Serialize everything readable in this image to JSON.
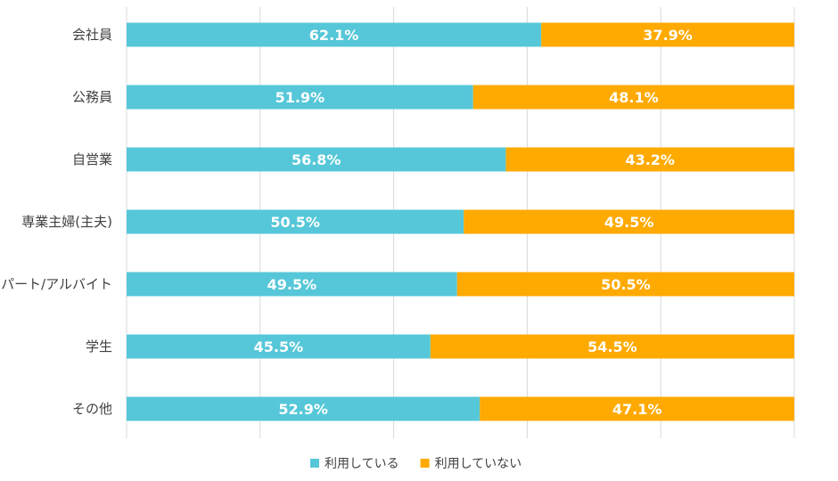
{
  "chart_data": {
    "type": "bar",
    "orientation": "horizontal",
    "stacked": "100%",
    "categories": [
      "会社員",
      "公務員",
      "自営業",
      "専業主婦(主夫)",
      "パート/アルバイト",
      "学生",
      "その他"
    ],
    "series": [
      {
        "name": "利用している",
        "color": "#56c7d8",
        "values": [
          62.1,
          51.9,
          56.8,
          50.5,
          49.5,
          45.5,
          52.9
        ],
        "labels": [
          "62.1%",
          "51.9%",
          "56.8%",
          "50.5%",
          "49.5%",
          "45.5%",
          "52.9%"
        ]
      },
      {
        "name": "利用していない",
        "color": "#ffaa00",
        "values": [
          37.9,
          48.1,
          43.2,
          49.5,
          50.5,
          54.5,
          47.1
        ],
        "labels": [
          "37.9%",
          "48.1%",
          "43.2%",
          "49.5%",
          "50.5%",
          "54.5%",
          "47.1%"
        ]
      }
    ],
    "xlim": [
      0,
      100
    ],
    "grid": true,
    "legend_position": "bottom"
  }
}
